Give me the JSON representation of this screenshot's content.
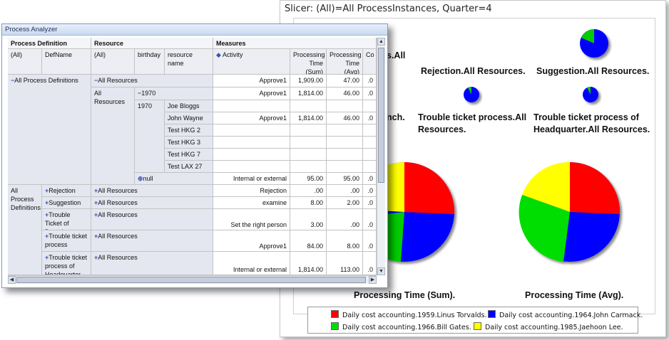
{
  "slicer": {
    "title": "Slicer: (All)=All ProcessInstances, Quarter=4",
    "labels": {
      "partial_top": "s.All",
      "rejection": "Rejection.All Resources.",
      "suggestion": "Suggestion.All Resources.",
      "partial_mid": "nch.",
      "trouble_ticket": "Trouble ticket process.All Resources.",
      "trouble_hq": "Trouble ticket process of Headquarter.All Resources.",
      "sum_caption": "Processing Time (Sum).",
      "avg_caption": "Processing Time (Avg)."
    },
    "legend": [
      {
        "label": "Daily cost accounting.1959.Linus Torvalds.",
        "color": "#ff0000"
      },
      {
        "label": "Daily cost accounting.1964.John Carmack.",
        "color": "#0000ff"
      },
      {
        "label": "Daily cost accounting.1966.Bill Gates.",
        "color": "#00dd00"
      },
      {
        "label": "Daily cost accounting.1985.Jaehoon Lee.",
        "color": "#ffff00"
      }
    ]
  },
  "analyzer": {
    "title": "Process Analyzer",
    "header_top": {
      "process_definition": "Process Definition",
      "resource": "Resource",
      "measures": "Measures"
    },
    "header_sub": {
      "all1": "(All)",
      "defname": "DefName",
      "all2": "(All)",
      "birthday": "birthday",
      "resource_name": "resource name",
      "activity": "Activity",
      "pt_sum": "Processing Time (Sum)",
      "pt_avg": "Processing Time (Avg)",
      "co": "Co"
    },
    "rows": {
      "all_pd": "All Process Definitions",
      "all_res": "All Resources",
      "all_res2": "All Resources",
      "y1970a": "1970",
      "y1970b": "1970",
      "null": "null",
      "all_pd2": "All Process Definitions",
      "rejection": "Rejection",
      "suggestion": "Suggestion",
      "tt_branch": "Trouble Ticket of Branch",
      "tt_process": "Trouble ticket process",
      "tt_hq": "Trouble ticket process of Headquarter",
      "ar1": "All Resources",
      "ar2": "All Resources",
      "ar3": "All Resources",
      "ar4": "All Resources",
      "ar5": "All Resources"
    },
    "names": [
      "Joe Bloggs",
      "John Wayne",
      "Test HKG 2",
      "Test HKG 3",
      "Test HKG 7",
      "Test LAX 27"
    ],
    "data": [
      {
        "activity": "Approve1",
        "sum": "1,909.00",
        "avg": "47.00",
        "co": ".0"
      },
      {
        "activity": "Approve1",
        "sum": "1,814.00",
        "avg": "46.00",
        "co": ".0"
      },
      {
        "activity": "",
        "sum": "",
        "avg": "",
        "co": ""
      },
      {
        "activity": "Approve1",
        "sum": "1,814.00",
        "avg": "46.00",
        "co": ".0"
      },
      {
        "activity": "",
        "sum": "",
        "avg": "",
        "co": ""
      },
      {
        "activity": "",
        "sum": "",
        "avg": "",
        "co": ""
      },
      {
        "activity": "",
        "sum": "",
        "avg": "",
        "co": ""
      },
      {
        "activity": "",
        "sum": "",
        "avg": "",
        "co": ""
      },
      {
        "activity": "Internal or external problem?",
        "sum": "95.00",
        "avg": "95.00",
        "co": ".0"
      },
      {
        "activity": "Rejection",
        "sum": ".00",
        "avg": ".00",
        "co": ".0"
      },
      {
        "activity": "examine",
        "sum": "8.00",
        "avg": "2.00",
        "co": ".0"
      },
      {
        "activity": "Set the right person",
        "sum": "3.00",
        "avg": ".00",
        "co": ".0"
      },
      {
        "activity": "Approve1",
        "sum": "84.00",
        "avg": "8.00",
        "co": ".0"
      },
      {
        "activity": "Internal or external problem?",
        "sum": "1,814.00",
        "avg": "113.00",
        "co": ".0"
      }
    ]
  }
}
